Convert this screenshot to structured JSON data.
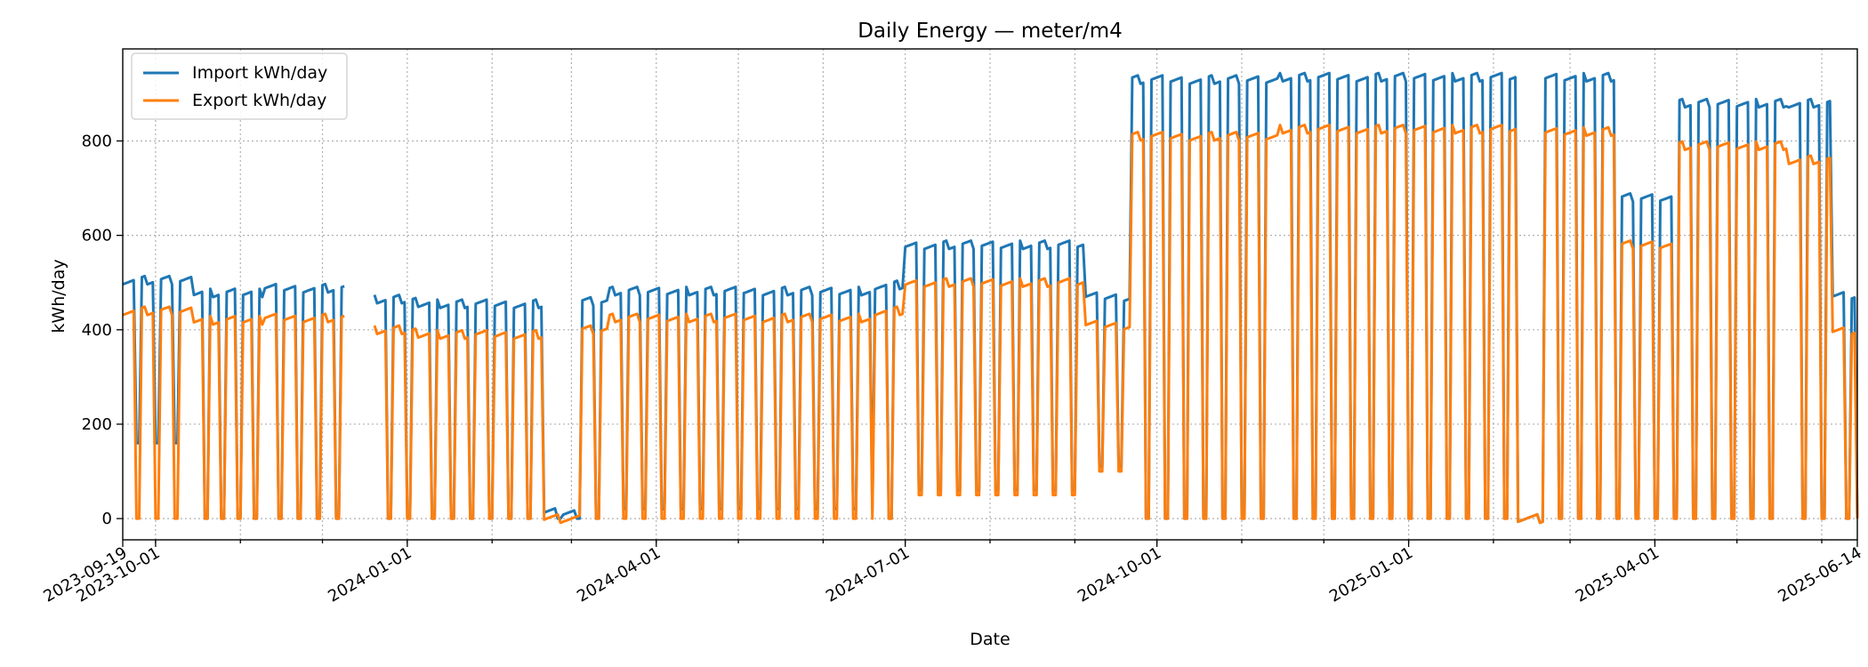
{
  "chart_data": {
    "type": "line",
    "title": "Daily Energy — meter/m4",
    "xlabel": "Date",
    "ylabel": "kWh/day",
    "xlim": [
      "2023-09-19",
      "2025-06-14"
    ],
    "ylim": [
      -45,
      995
    ],
    "x_ticks": [
      "2023-09-19",
      "2023-10-01",
      "2024-01-01",
      "2024-04-01",
      "2024-07-01",
      "2024-10-01",
      "2025-01-01",
      "2025-04-01",
      "2025-06-14"
    ],
    "y_ticks": [
      0,
      200,
      400,
      600,
      800
    ],
    "grid": true,
    "legend_position": "top-left",
    "colors": {
      "import": "#1f77b4",
      "export": "#ff7f0e"
    },
    "series": [
      {
        "name": "Import kWh/day",
        "key": "import",
        "segments": [
          {
            "t": "2023-09-19",
            "on": 505,
            "off": 160,
            "period": 7,
            "on_days": 5
          },
          {
            "t": "2023-10-15",
            "on": 478,
            "off": 0,
            "period": 6,
            "on_days": 4
          },
          {
            "t": "2023-11-10",
            "on": 488,
            "off": 0,
            "period": 7,
            "on_days": 5
          },
          {
            "t": "2023-12-10",
            "gap": true
          },
          {
            "t": "2023-12-20",
            "on": 465,
            "off": 0,
            "period": 7,
            "on_days": 5
          },
          {
            "t": "2024-01-05",
            "on": 455,
            "off": 0,
            "period": 7,
            "on_days": 5
          },
          {
            "t": "2024-02-20",
            "on": 15,
            "off": 0,
            "period": 7,
            "on_days": 5
          },
          {
            "t": "2024-03-05",
            "on": 460,
            "off": 0,
            "period": 7,
            "on_days": 5
          },
          {
            "t": "2024-03-15",
            "on": 482,
            "off": 20,
            "period": 7,
            "on_days": 5
          },
          {
            "t": "2024-06-20",
            "on": 495,
            "off": 0,
            "period": 7,
            "on_days": 5
          },
          {
            "t": "2024-07-01",
            "on": 580,
            "off": 60,
            "period": 7,
            "on_days": 5
          },
          {
            "t": "2024-09-05",
            "on": 470,
            "off": 110,
            "period": 7,
            "on_days": 5
          },
          {
            "t": "2024-09-22",
            "on": 930,
            "off": 0,
            "period": 7,
            "on_days": 5
          },
          {
            "t": "2024-11-15",
            "on": 935,
            "off": 0,
            "period": 7,
            "on_days": 5
          },
          {
            "t": "2025-02-10",
            "on": 0,
            "off": 0,
            "period": 7,
            "on_days": 7
          },
          {
            "t": "2025-02-20",
            "on": 935,
            "off": 0,
            "period": 7,
            "on_days": 5
          },
          {
            "t": "2025-03-20",
            "on": 680,
            "off": 0,
            "period": 7,
            "on_days": 5
          },
          {
            "t": "2025-04-10",
            "on": 880,
            "off": 0,
            "period": 7,
            "on_days": 5
          },
          {
            "t": "2025-05-20",
            "on": 880,
            "off": 0,
            "period": 7,
            "on_days": 5
          },
          {
            "t": "2025-06-05",
            "on": 475,
            "off": 0,
            "period": 7,
            "on_days": 5
          },
          {
            "t": "2025-06-14",
            "end": 0
          }
        ]
      },
      {
        "name": "Export kWh/day",
        "key": "export",
        "segments": [
          {
            "t": "2023-09-19",
            "on": 440,
            "off": 0,
            "period": 7,
            "on_days": 5
          },
          {
            "t": "2023-10-15",
            "on": 420,
            "off": 0,
            "period": 6,
            "on_days": 4
          },
          {
            "t": "2023-11-10",
            "on": 425,
            "off": 0,
            "period": 7,
            "on_days": 5
          },
          {
            "t": "2023-12-10",
            "gap": true
          },
          {
            "t": "2023-12-20",
            "on": 400,
            "off": 0,
            "period": 7,
            "on_days": 5
          },
          {
            "t": "2024-01-05",
            "on": 390,
            "off": 0,
            "period": 7,
            "on_days": 5
          },
          {
            "t": "2024-02-20",
            "on": 0,
            "off": 0,
            "period": 7,
            "on_days": 7
          },
          {
            "t": "2024-03-05",
            "on": 400,
            "off": 0,
            "period": 7,
            "on_days": 5
          },
          {
            "t": "2024-03-15",
            "on": 425,
            "off": 0,
            "period": 7,
            "on_days": 5
          },
          {
            "t": "2024-06-20",
            "on": 440,
            "off": 0,
            "period": 7,
            "on_days": 5
          },
          {
            "t": "2024-07-01",
            "on": 500,
            "off": 50,
            "period": 7,
            "on_days": 5
          },
          {
            "t": "2024-09-05",
            "on": 410,
            "off": 100,
            "period": 7,
            "on_days": 5
          },
          {
            "t": "2024-09-22",
            "on": 810,
            "off": 0,
            "period": 7,
            "on_days": 5
          },
          {
            "t": "2024-11-15",
            "on": 825,
            "off": 0,
            "period": 7,
            "on_days": 5
          },
          {
            "t": "2025-02-10",
            "on": 0,
            "off": 0,
            "period": 7,
            "on_days": 7
          },
          {
            "t": "2025-02-20",
            "on": 820,
            "off": 0,
            "period": 7,
            "on_days": 5
          },
          {
            "t": "2025-03-20",
            "on": 580,
            "off": 0,
            "period": 7,
            "on_days": 5
          },
          {
            "t": "2025-04-10",
            "on": 790,
            "off": 0,
            "period": 7,
            "on_days": 5
          },
          {
            "t": "2025-05-20",
            "on": 760,
            "off": 0,
            "period": 7,
            "on_days": 5
          },
          {
            "t": "2025-06-05",
            "on": 400,
            "off": 0,
            "period": 7,
            "on_days": 5
          },
          {
            "t": "2025-06-14",
            "end": 0
          }
        ]
      }
    ]
  }
}
